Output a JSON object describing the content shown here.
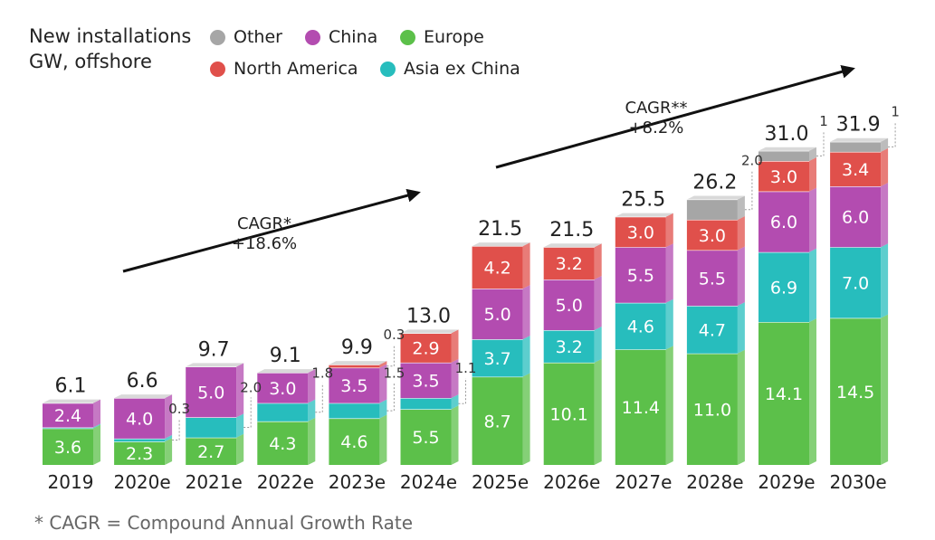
{
  "legend": {
    "title_line1": "New installations",
    "title_line2": "GW, offshore",
    "items": [
      {
        "label": "Other",
        "color": "#a6a6a6"
      },
      {
        "label": "China",
        "color": "#b34cb0"
      },
      {
        "label": "Europe",
        "color": "#5cc04a"
      },
      {
        "label": "North America",
        "color": "#e0504b"
      },
      {
        "label": "Asia ex China",
        "color": "#27bdbd"
      }
    ]
  },
  "cagr": [
    {
      "label_line1": "CAGR*",
      "label_line2": "+18.6%"
    },
    {
      "label_line1": "CAGR**",
      "label_line2": "+8.2%"
    }
  ],
  "footnote": "* CAGR = Compound Annual Growth Rate",
  "chart_data": {
    "type": "bar",
    "stacked": true,
    "categories": [
      "2019",
      "2020e",
      "2021e",
      "2022e",
      "2023e",
      "2024e",
      "2025e",
      "2026e",
      "2027e",
      "2028e",
      "2029e",
      "2030e"
    ],
    "totals": [
      "6.1",
      "6.6",
      "9.7",
      "9.1",
      "9.9",
      "13.0",
      "21.5",
      "21.5",
      "25.5",
      "26.2",
      "31.0",
      "31.9"
    ],
    "series": [
      {
        "name": "Europe",
        "color": "#5cc04a",
        "values": [
          3.6,
          2.3,
          2.7,
          4.3,
          4.6,
          5.5,
          8.7,
          10.1,
          11.4,
          11.0,
          14.1,
          14.5
        ],
        "labels": [
          "3.6",
          "2.3",
          "2.7",
          "4.3",
          "4.6",
          "5.5",
          "8.7",
          "10.1",
          "11.4",
          "11.0",
          "14.1",
          "14.5"
        ]
      },
      {
        "name": "Asia ex China",
        "color": "#27bdbd",
        "values": [
          0.1,
          0.3,
          2.0,
          1.8,
          1.5,
          1.1,
          3.7,
          3.2,
          4.6,
          4.7,
          6.9,
          7.0
        ],
        "labels": [
          "",
          "",
          "",
          "",
          "",
          "",
          "3.7",
          "3.2",
          "4.6",
          "4.7",
          "6.9",
          "7.0"
        ],
        "callouts": [
          "",
          "0.3",
          "2.0",
          "1.8",
          "1.5",
          "1.1",
          "",
          "",
          "",
          "",
          "",
          ""
        ]
      },
      {
        "name": "China",
        "color": "#b34cb0",
        "values": [
          2.4,
          4.0,
          5.0,
          3.0,
          3.5,
          3.5,
          5.0,
          5.0,
          5.5,
          5.5,
          6.0,
          6.0
        ],
        "labels": [
          "2.4",
          "4.0",
          "5.0",
          "3.0",
          "3.5",
          "3.5",
          "5.0",
          "5.0",
          "5.5",
          "5.5",
          "6.0",
          "6.0"
        ]
      },
      {
        "name": "North America",
        "color": "#e0504b",
        "values": [
          0,
          0,
          0,
          0,
          0.3,
          2.9,
          4.2,
          3.2,
          3.0,
          3.0,
          3.0,
          3.4
        ],
        "labels": [
          "",
          "",
          "",
          "",
          "",
          "2.9",
          "4.2",
          "3.2",
          "3.0",
          "3.0",
          "3.0",
          "3.4"
        ],
        "callouts": [
          "",
          "",
          "",
          "",
          "0.3",
          "",
          "",
          "",
          "",
          "",
          "",
          ""
        ]
      },
      {
        "name": "Other",
        "color": "#a6a6a6",
        "values": [
          0,
          0,
          0,
          0,
          0,
          0,
          0,
          0,
          0,
          2.0,
          1,
          1
        ],
        "labels": [
          "",
          "",
          "",
          "",
          "",
          "",
          "",
          "",
          "",
          "",
          "",
          ""
        ],
        "callouts": [
          "",
          "",
          "",
          "",
          "",
          "",
          "",
          "",
          "",
          "2.0",
          "1",
          "1"
        ]
      }
    ]
  }
}
